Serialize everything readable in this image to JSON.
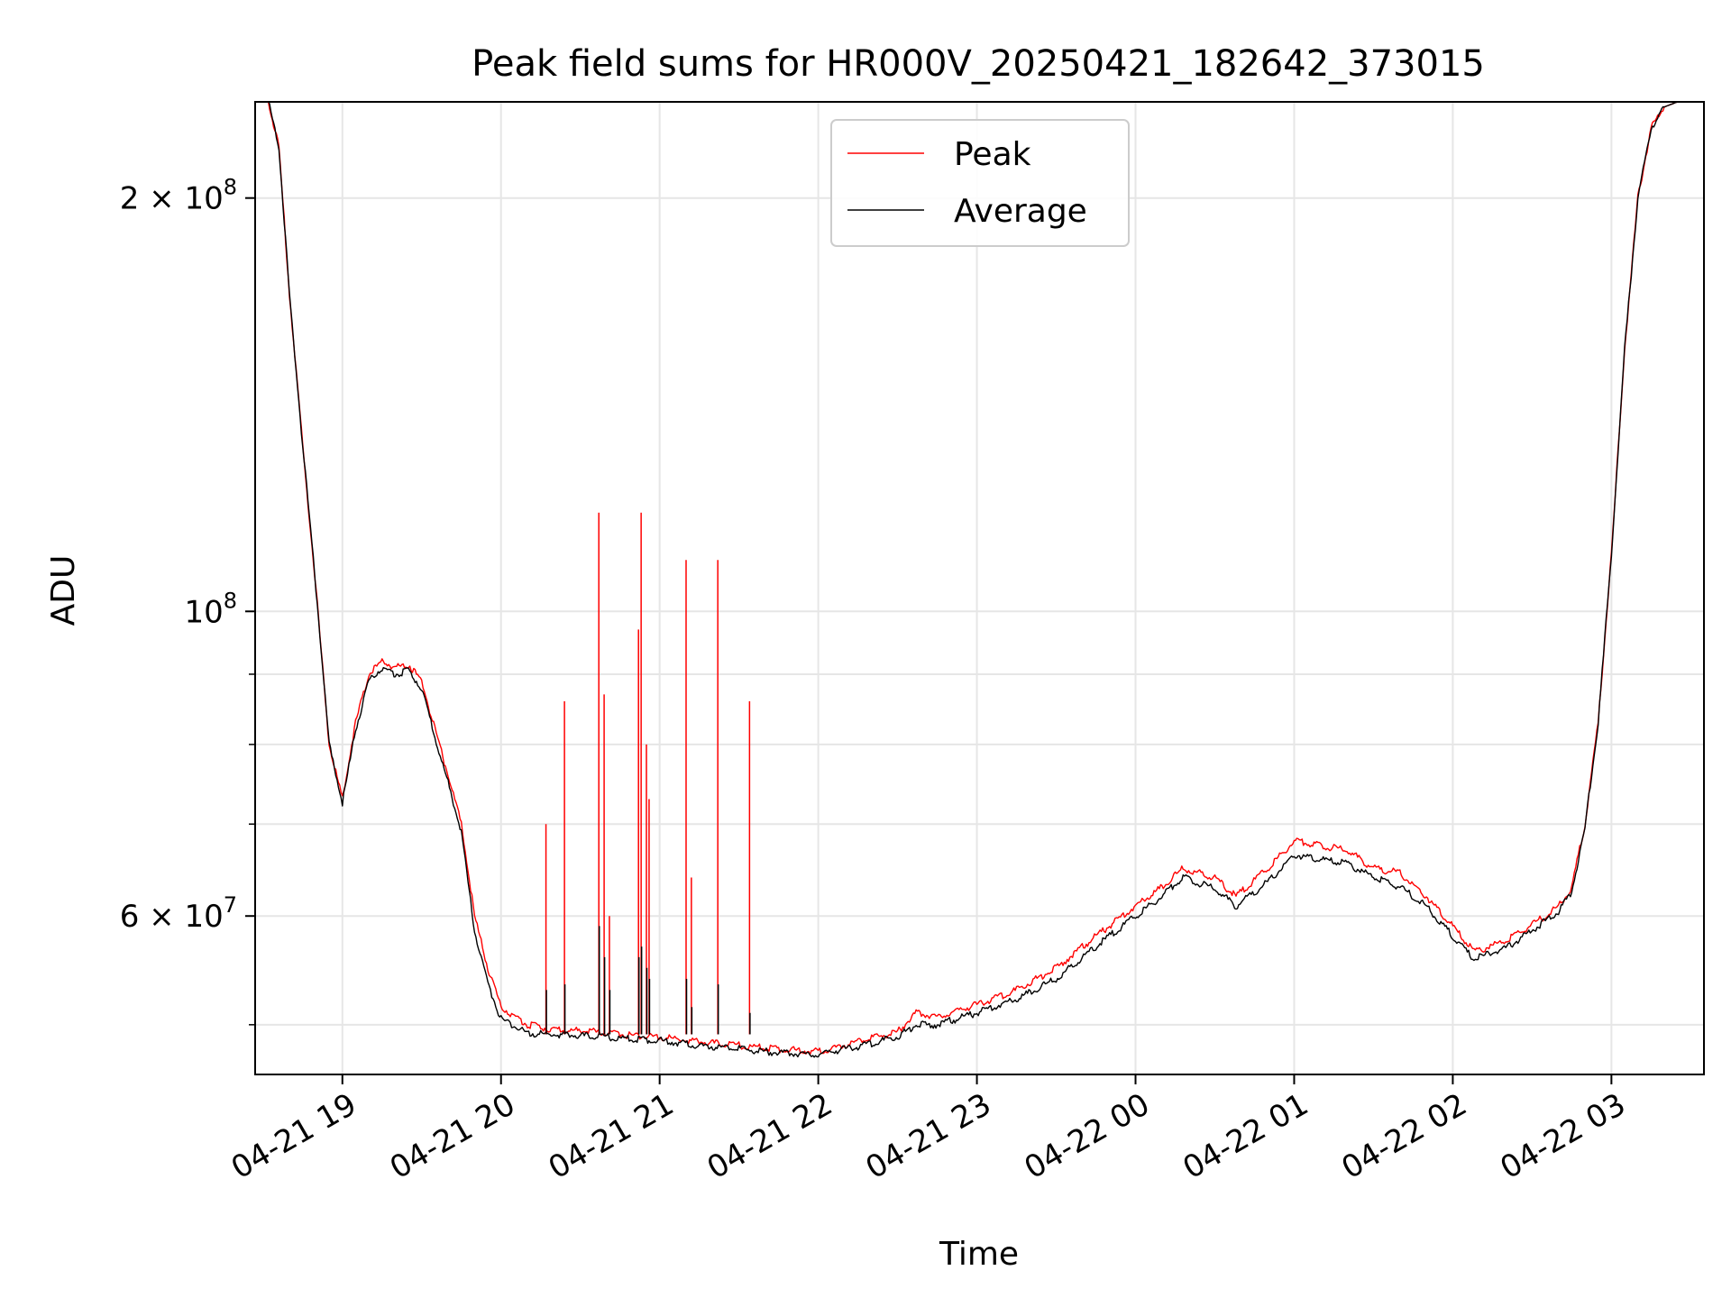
{
  "chart_data": {
    "type": "line",
    "title": "Peak field sums for HR000V_20250421_182642_373015",
    "xlabel": "Time",
    "ylabel": "ADU",
    "y_scale": "log",
    "grid": true,
    "legend_position": "top-center",
    "x_range": [
      "2025-04-21 18:27",
      "2025-04-22 03:35"
    ],
    "ylim": [
      46000000,
      235000000
    ],
    "x_ticks": [
      {
        "t": "2025-04-21 19:00",
        "label": "04-21 19"
      },
      {
        "t": "2025-04-21 20:00",
        "label": "04-21 20"
      },
      {
        "t": "2025-04-21 21:00",
        "label": "04-21 21"
      },
      {
        "t": "2025-04-21 22:00",
        "label": "04-21 22"
      },
      {
        "t": "2025-04-21 23:00",
        "label": "04-21 23"
      },
      {
        "t": "2025-04-22 00:00",
        "label": "04-22 00"
      },
      {
        "t": "2025-04-22 01:00",
        "label": "04-22 01"
      },
      {
        "t": "2025-04-22 02:00",
        "label": "04-22 02"
      },
      {
        "t": "2025-04-22 03:00",
        "label": "04-22 03"
      }
    ],
    "y_ticks": [
      {
        "value": 200000000,
        "base": "2 × 10",
        "exp": "8"
      },
      {
        "value": 100000000,
        "base": "10",
        "exp": "8"
      },
      {
        "value": 60000000,
        "base": "6 × 10",
        "exp": "7"
      }
    ],
    "y_minor_ticks": [
      50000000,
      70000000,
      80000000,
      90000000
    ],
    "series": [
      {
        "name": "Peak",
        "color": "#ff0000",
        "x": [
          "2025-04-21 18:27",
          "2025-04-21 18:32",
          "2025-04-21 18:36",
          "2025-04-21 18:40",
          "2025-04-21 18:45",
          "2025-04-21 18:50",
          "2025-04-21 18:55",
          "2025-04-21 19:00",
          "2025-04-21 19:05",
          "2025-04-21 19:10",
          "2025-04-21 19:15",
          "2025-04-21 19:20",
          "2025-04-21 19:25",
          "2025-04-21 19:30",
          "2025-04-21 19:35",
          "2025-04-21 19:40",
          "2025-04-21 19:45",
          "2025-04-21 19:50",
          "2025-04-21 19:55",
          "2025-04-21 20:00",
          "2025-04-21 20:10",
          "2025-04-21 20:20",
          "2025-04-21 20:30",
          "2025-04-21 20:40",
          "2025-04-21 20:50",
          "2025-04-21 21:00",
          "2025-04-21 21:15",
          "2025-04-21 21:30",
          "2025-04-21 21:45",
          "2025-04-21 22:00",
          "2025-04-21 22:15",
          "2025-04-21 22:30",
          "2025-04-21 22:37",
          "2025-04-21 22:45",
          "2025-04-21 23:00",
          "2025-04-21 23:15",
          "2025-04-21 23:30",
          "2025-04-21 23:45",
          "2025-04-22 00:00",
          "2025-04-22 00:10",
          "2025-04-22 00:18",
          "2025-04-22 00:30",
          "2025-04-22 00:38",
          "2025-04-22 00:50",
          "2025-04-22 01:00",
          "2025-04-22 01:10",
          "2025-04-22 01:20",
          "2025-04-22 01:30",
          "2025-04-22 01:40",
          "2025-04-22 01:50",
          "2025-04-22 02:00",
          "2025-04-22 02:08",
          "2025-04-22 02:20",
          "2025-04-22 02:35",
          "2025-04-22 02:40",
          "2025-04-22 02:45",
          "2025-04-22 02:50",
          "2025-04-22 02:55",
          "2025-04-22 03:00",
          "2025-04-22 03:05",
          "2025-04-22 03:10",
          "2025-04-22 03:15",
          "2025-04-22 03:20",
          "2025-04-22 03:25",
          "2025-04-22 03:30",
          "2025-04-22 03:35"
        ],
        "values": [
          235000000,
          235000000,
          218000000,
          170000000,
          132000000,
          104000000,
          80000000,
          73000000,
          83000000,
          90000000,
          92000000,
          91000000,
          91500000,
          89000000,
          82000000,
          76000000,
          70000000,
          60000000,
          55000000,
          51500000,
          50000000,
          49600000,
          49500000,
          49300000,
          49100000,
          49000000,
          48600000,
          48300000,
          48000000,
          47800000,
          48600000,
          49400000,
          51000000,
          50700000,
          51700000,
          53000000,
          55000000,
          58000000,
          61000000,
          63000000,
          65000000,
          64000000,
          62000000,
          65000000,
          68000000,
          67500000,
          67000000,
          65000000,
          64500000,
          62000000,
          59000000,
          56500000,
          57500000,
          60000000,
          61000000,
          63000000,
          70000000,
          83000000,
          110000000,
          155000000,
          200000000,
          225000000,
          233000000,
          235000000,
          235000000,
          235000000
        ]
      },
      {
        "name": "Average",
        "color": "#000000",
        "x": [
          "2025-04-21 18:27",
          "2025-04-21 18:32",
          "2025-04-21 18:36",
          "2025-04-21 18:40",
          "2025-04-21 18:45",
          "2025-04-21 18:50",
          "2025-04-21 18:55",
          "2025-04-21 19:00",
          "2025-04-21 19:05",
          "2025-04-21 19:10",
          "2025-04-21 19:15",
          "2025-04-21 19:20",
          "2025-04-21 19:25",
          "2025-04-21 19:30",
          "2025-04-21 19:35",
          "2025-04-21 19:40",
          "2025-04-21 19:45",
          "2025-04-21 19:50",
          "2025-04-21 19:55",
          "2025-04-21 20:00",
          "2025-04-21 20:10",
          "2025-04-21 20:20",
          "2025-04-21 20:30",
          "2025-04-21 20:40",
          "2025-04-21 20:50",
          "2025-04-21 21:00",
          "2025-04-21 21:15",
          "2025-04-21 21:30",
          "2025-04-21 21:45",
          "2025-04-21 22:00",
          "2025-04-21 22:15",
          "2025-04-21 22:30",
          "2025-04-21 22:37",
          "2025-04-21 22:45",
          "2025-04-21 23:00",
          "2025-04-21 23:15",
          "2025-04-21 23:30",
          "2025-04-21 23:45",
          "2025-04-22 00:00",
          "2025-04-22 00:10",
          "2025-04-22 00:18",
          "2025-04-22 00:30",
          "2025-04-22 00:38",
          "2025-04-22 00:50",
          "2025-04-22 01:00",
          "2025-04-22 01:10",
          "2025-04-22 01:20",
          "2025-04-22 01:30",
          "2025-04-22 01:40",
          "2025-04-22 01:50",
          "2025-04-22 02:00",
          "2025-04-22 02:08",
          "2025-04-22 02:20",
          "2025-04-22 02:35",
          "2025-04-22 02:40",
          "2025-04-22 02:45",
          "2025-04-22 02:50",
          "2025-04-22 02:55",
          "2025-04-22 03:00",
          "2025-04-22 03:05",
          "2025-04-22 03:10",
          "2025-04-22 03:15",
          "2025-04-22 03:20",
          "2025-04-22 03:25",
          "2025-04-22 03:30",
          "2025-04-22 03:35"
        ],
        "values": [
          235000000,
          235000000,
          218000000,
          170000000,
          132000000,
          104000000,
          80000000,
          72500000,
          82000000,
          89000000,
          91000000,
          90000000,
          90500000,
          88000000,
          81000000,
          75000000,
          69000000,
          58500000,
          53500000,
          50500000,
          49300000,
          49200000,
          49100000,
          49000000,
          48800000,
          48700000,
          48300000,
          48000000,
          47700000,
          47600000,
          48200000,
          49000000,
          50000000,
          50000000,
          51000000,
          52200000,
          54000000,
          57000000,
          60000000,
          62000000,
          64000000,
          62800000,
          61000000,
          63500000,
          66500000,
          66000000,
          65500000,
          64000000,
          63000000,
          61000000,
          58000000,
          55800000,
          56800000,
          59500000,
          60500000,
          62500000,
          69500000,
          83000000,
          110000000,
          155000000,
          200000000,
          225000000,
          233000000,
          235000000,
          235000000,
          235000000
        ]
      }
    ],
    "spikes": {
      "x": [
        "2025-04-21 20:17",
        "2025-04-21 20:24",
        "2025-04-21 20:37",
        "2025-04-21 20:39",
        "2025-04-21 20:41",
        "2025-04-21 20:52",
        "2025-04-21 20:53",
        "2025-04-21 20:55",
        "2025-04-21 20:56",
        "2025-04-21 21:10",
        "2025-04-21 21:12",
        "2025-04-21 21:22",
        "2025-04-21 21:34"
      ],
      "peak": [
        70000000,
        86000000,
        118000000,
        87000000,
        60000000,
        97000000,
        118000000,
        80000000,
        73000000,
        109000000,
        64000000,
        109000000,
        86000000
      ],
      "average": [
        53000000,
        53500000,
        59000000,
        56000000,
        53000000,
        56000000,
        57000000,
        55000000,
        54000000,
        54000000,
        51500000,
        53500000,
        51000000
      ]
    }
  }
}
